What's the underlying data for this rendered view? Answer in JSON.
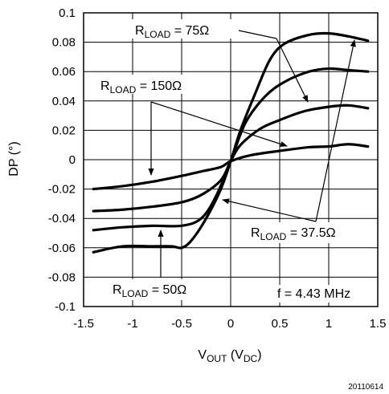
{
  "chart_data": {
    "type": "line",
    "xlabel": {
      "main": "V",
      "sub1": "OUT",
      "mid": " (V",
      "sub2": "DC",
      "end": ")"
    },
    "ylabel": "DP (°)",
    "xlim": [
      -1.5,
      1.5
    ],
    "ylim": [
      -0.1,
      0.1
    ],
    "x_ticks": [
      -1.5,
      -1,
      -0.5,
      0,
      0.5,
      1,
      1.5
    ],
    "x_tick_labels": [
      "-1.5",
      "-1",
      "-0.5",
      "0",
      "0.5",
      "1",
      "1.5"
    ],
    "y_ticks": [
      -0.1,
      -0.08,
      -0.06,
      -0.04,
      -0.02,
      0,
      0.02,
      0.04,
      0.06,
      0.08,
      0.1
    ],
    "y_tick_labels": [
      "-0.1",
      "-0.08",
      "-0.06",
      "-0.04",
      "-0.02",
      "0",
      "0.02",
      "0.04",
      "0.06",
      "0.08",
      "0.1"
    ],
    "grid": true,
    "series": [
      {
        "points": [
          [
            -1.4,
            -0.02
          ],
          [
            -1.1,
            -0.018
          ],
          [
            -0.8,
            -0.015
          ],
          [
            -0.5,
            -0.011
          ],
          [
            -0.3,
            -0.008
          ],
          [
            -0.1,
            -0.005
          ],
          [
            0,
            -0.001
          ],
          [
            0.2,
            0.003
          ],
          [
            0.5,
            0.006
          ],
          [
            0.8,
            0.0085
          ],
          [
            1.0,
            0.009
          ],
          [
            1.2,
            0.0105
          ],
          [
            1.4,
            0.009
          ]
        ]
      },
      {
        "points": [
          [
            -1.4,
            -0.035
          ],
          [
            -1.1,
            -0.034
          ],
          [
            -0.8,
            -0.032
          ],
          [
            -0.5,
            -0.029
          ],
          [
            -0.3,
            -0.024
          ],
          [
            -0.1,
            -0.014
          ],
          [
            0,
            -0.001
          ],
          [
            0.1,
            0.01
          ],
          [
            0.3,
            0.021
          ],
          [
            0.5,
            0.027
          ],
          [
            0.75,
            0.033
          ],
          [
            1.0,
            0.036
          ],
          [
            1.2,
            0.037
          ],
          [
            1.4,
            0.035
          ]
        ]
      },
      {
        "points": [
          [
            -1.4,
            -0.048
          ],
          [
            -1.1,
            -0.046
          ],
          [
            -0.8,
            -0.045
          ],
          [
            -0.5,
            -0.045
          ],
          [
            -0.3,
            -0.04
          ],
          [
            -0.15,
            -0.025
          ],
          [
            0,
            -0.001
          ],
          [
            0.15,
            0.025
          ],
          [
            0.35,
            0.043
          ],
          [
            0.55,
            0.053
          ],
          [
            0.8,
            0.06
          ],
          [
            1.0,
            0.062
          ],
          [
            1.2,
            0.061
          ],
          [
            1.4,
            0.06
          ]
        ]
      },
      {
        "points": [
          [
            -1.4,
            -0.063
          ],
          [
            -1.1,
            -0.059
          ],
          [
            -0.8,
            -0.059
          ],
          [
            -0.6,
            -0.059
          ],
          [
            -0.5,
            -0.06
          ],
          [
            -0.4,
            -0.055
          ],
          [
            -0.25,
            -0.04
          ],
          [
            -0.1,
            -0.02
          ],
          [
            0,
            -0.001
          ],
          [
            0.1,
            0.02
          ],
          [
            0.25,
            0.045
          ],
          [
            0.4,
            0.068
          ],
          [
            0.55,
            0.079
          ],
          [
            0.8,
            0.085
          ],
          [
            1.0,
            0.086
          ],
          [
            1.2,
            0.084
          ],
          [
            1.4,
            0.081
          ]
        ]
      }
    ],
    "annotations": {
      "r75": {
        "pre": "R",
        "sub": "LOAD",
        "post": " = 75Ω"
      },
      "r150": {
        "pre": "R",
        "sub": "LOAD",
        "post": " = 150Ω"
      },
      "r375": {
        "pre": "R",
        "sub": "LOAD",
        "post": " = 37.5Ω"
      },
      "r50": {
        "pre": "R",
        "sub": "LOAD",
        "post": " = 50Ω"
      },
      "freq": "f = 4.43 MHz"
    },
    "figure_number": "20110614"
  }
}
